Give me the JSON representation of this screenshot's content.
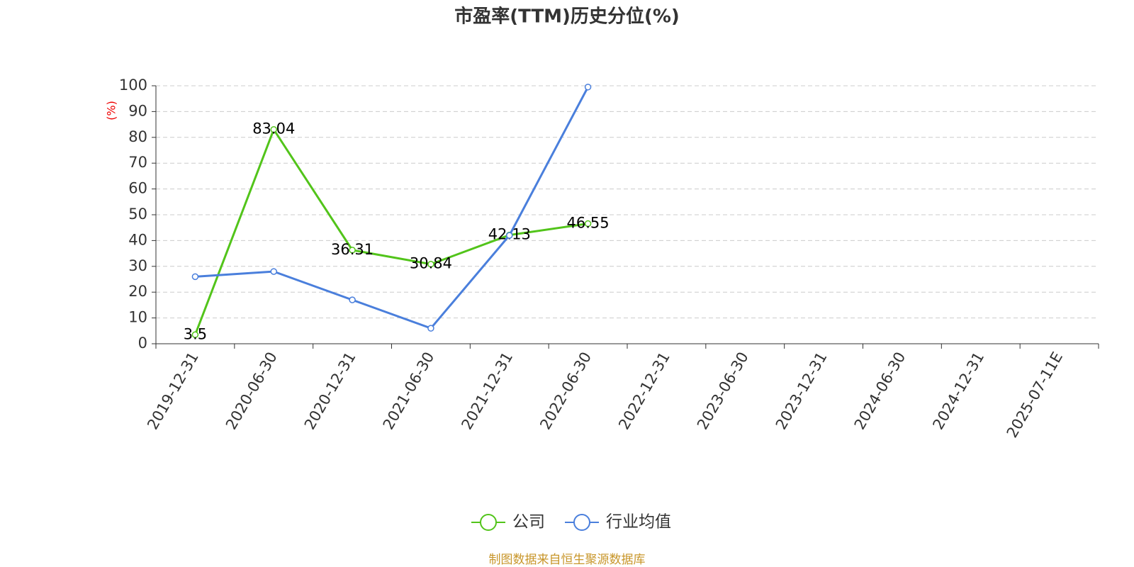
{
  "chart_data": {
    "type": "line",
    "title": "市盈率(TTM)历史分位(%)",
    "y_label": "(%)",
    "categories": [
      "2019-12-31",
      "2020-06-30",
      "2020-12-31",
      "2021-06-30",
      "2021-12-31",
      "2022-06-30",
      "2022-12-31",
      "2023-06-30",
      "2023-12-31",
      "2024-06-30",
      "2024-12-31",
      "2025-07-11E"
    ],
    "series": [
      {
        "name": "公司",
        "color": "#52c41a",
        "values": [
          3.5,
          83.04,
          36.31,
          30.84,
          42.13,
          46.55,
          null,
          null,
          null,
          null,
          null,
          null
        ],
        "show_labels": true
      },
      {
        "name": "行业均值",
        "color": "#4a7fdc",
        "values": [
          26,
          28,
          17,
          6,
          42,
          99.5,
          null,
          null,
          null,
          null,
          null,
          null
        ],
        "show_labels": false
      }
    ],
    "ylim": [
      0,
      100
    ],
    "yticks": [
      0,
      10,
      20,
      30,
      40,
      50,
      60,
      70,
      80,
      90,
      100
    ],
    "grid": true,
    "legend": "bottom",
    "source": "制图数据来自恒生聚源数据库"
  }
}
